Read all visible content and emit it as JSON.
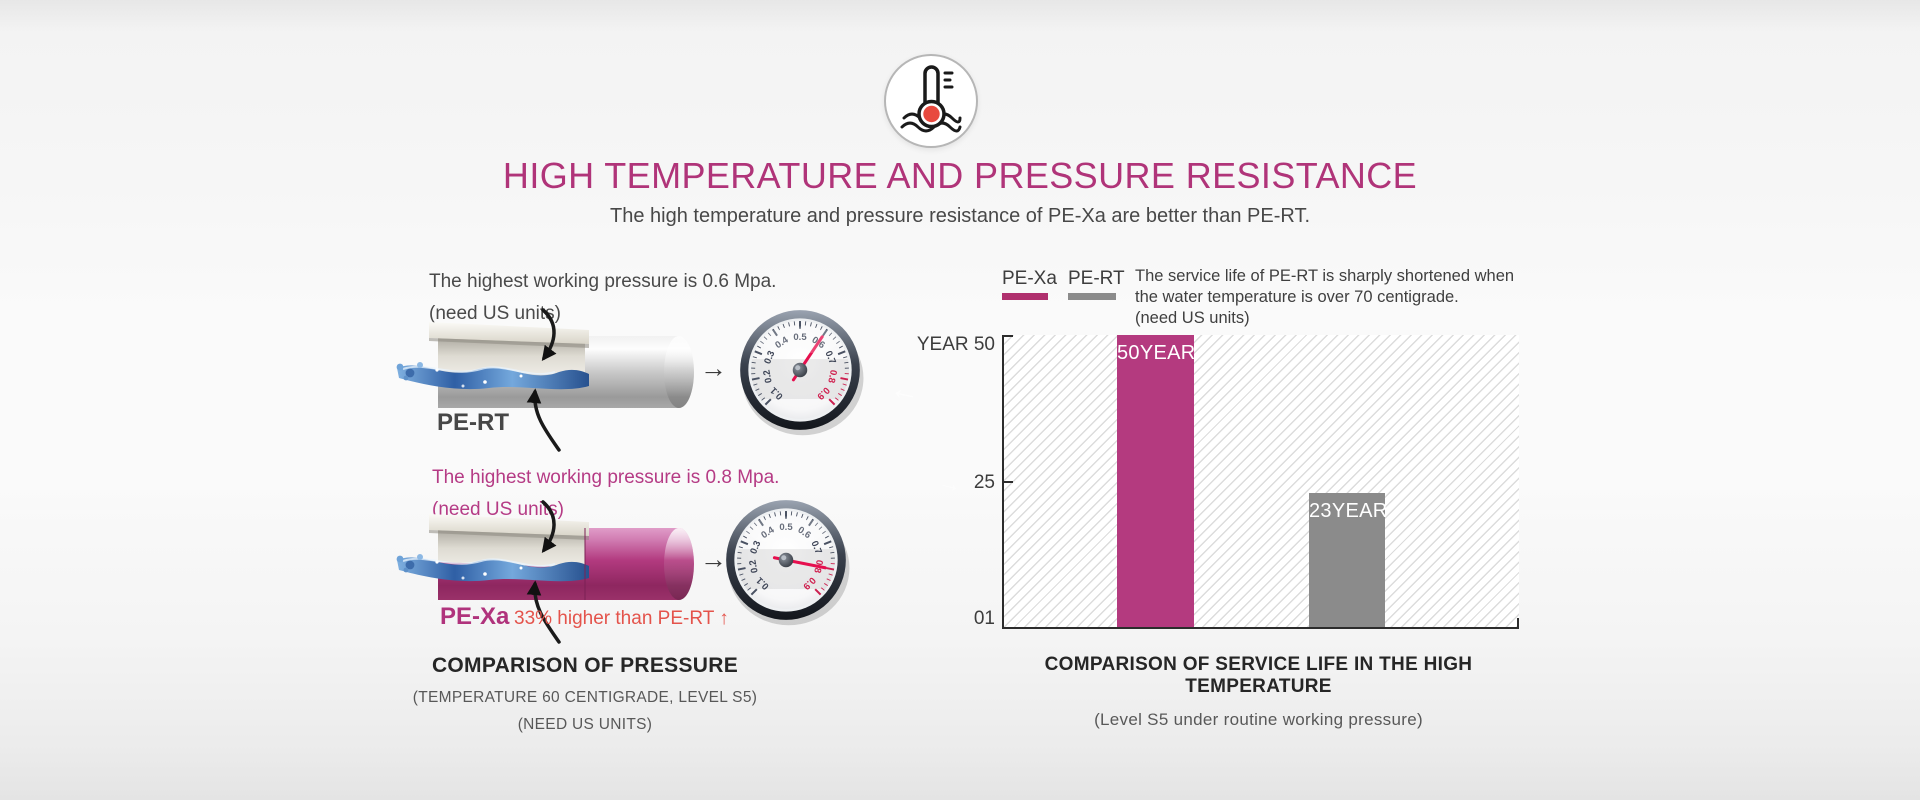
{
  "header": {
    "title": "HIGH TEMPERATURE AND PRESSURE RESISTANCE",
    "subtitle": "The high temperature and pressure resistance of PE-Xa are better than PE-RT.",
    "icon": "thermometer-heat-icon"
  },
  "colors": {
    "accent_magenta": "#b0347c",
    "bar_gray": "#8b8b8b",
    "alert_red": "#e4534b"
  },
  "pressure_section": {
    "pert": {
      "note_line1": "The highest working pressure is 0.6 Mpa.",
      "note_line2": "(need US units)",
      "label": "PE-RT"
    },
    "pexa": {
      "note_line1": "The highest working pressure is 0.8 Mpa.",
      "note_line2": "(need US units)",
      "label": "PE-Xa",
      "comparison": "33% higher than PE-RT ↑"
    },
    "arrow_glyph": "→",
    "gauge_dial_labels": [
      "0.1",
      "0.2",
      "0.3",
      "0.4",
      "0.5",
      "0.6",
      "0.7",
      "0.8",
      "0.9"
    ],
    "caption_line1": "COMPARISON OF PRESSURE",
    "caption_line2": "(TEMPERATURE 60 CENTIGRADE, LEVEL S5)",
    "caption_line3": "(NEED US UNITS)"
  },
  "gauges": [
    {
      "name": "pert-gauge",
      "value": 0.6,
      "min": 0.1,
      "max": 0.9,
      "red_labels": [
        "0.8",
        "0.9"
      ]
    },
    {
      "name": "pexa-gauge",
      "value": 0.8,
      "min": 0.1,
      "max": 0.9,
      "red_labels": [
        "0.8",
        "0.9"
      ]
    }
  ],
  "life_section": {
    "legend": [
      {
        "label": "PE-Xa",
        "color": "#b0306e"
      },
      {
        "label": "PE-RT",
        "color": "#8b8b8b"
      }
    ],
    "note_lines": [
      "The service life of PE-RT is sharply shortened when",
      "the water temperature is over 70 centigrade.",
      "(need US units)"
    ],
    "caption_line1": "COMPARISON OF SERVICE LIFE IN THE HIGH TEMPERATURE",
    "caption_line2": "(Level S5 under routine working pressure)"
  },
  "chart_data": {
    "type": "bar",
    "title": "COMPARISON OF SERVICE LIFE IN THE HIGH TEMPERATURE",
    "subtitle": "(Level S5 under routine working pressure)",
    "categories": [
      "PE-Xa",
      "PE-RT"
    ],
    "values": [
      50,
      23
    ],
    "bar_labels": [
      "50YEAR",
      "23YEAR"
    ],
    "bar_colors": [
      "#b43a7f",
      "#8b8b8b"
    ],
    "ylabel": "YEAR",
    "y_axis_labels": [
      "YEAR 50",
      "25",
      "01"
    ],
    "ylim": [
      0,
      50
    ],
    "legend_position": "top-left",
    "grid": "hatched-diagonal-background"
  },
  "decor": {
    "arrow_left": "←",
    "arrow_right": "→"
  }
}
